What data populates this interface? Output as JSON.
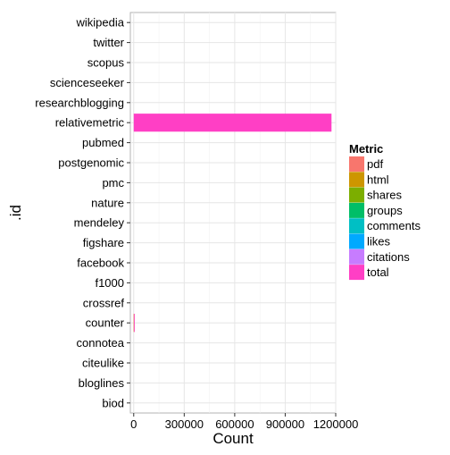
{
  "chart_data": {
    "type": "bar",
    "orientation": "horizontal",
    "stacked": true,
    "title": "",
    "xlabel": "Count",
    "ylabel": ".id",
    "xlim": [
      -20000,
      1200000
    ],
    "x_ticks": [
      0,
      300000,
      600000,
      900000,
      1200000
    ],
    "x_tick_labels": [
      "0",
      "300000",
      "600000",
      "900000",
      "1200000"
    ],
    "grid": true,
    "legend": {
      "title": "Metric",
      "position": "right"
    },
    "categories": [
      "wikipedia",
      "twitter",
      "scopus",
      "scienceseeker",
      "researchblogging",
      "relativemetric",
      "pubmed",
      "postgenomic",
      "pmc",
      "nature",
      "mendeley",
      "figshare",
      "facebook",
      "f1000",
      "crossref",
      "counter",
      "connotea",
      "citeulike",
      "bloglines",
      "biod"
    ],
    "series": [
      {
        "name": "pdf",
        "color": "#F8766D",
        "values": [
          0,
          0,
          0,
          0,
          0,
          0,
          0,
          0,
          0,
          0,
          0,
          0,
          0,
          0,
          0,
          250,
          0,
          0,
          0,
          0
        ]
      },
      {
        "name": "html",
        "color": "#CD9600",
        "values": [
          0,
          0,
          0,
          0,
          0,
          0,
          0,
          0,
          0,
          0,
          0,
          0,
          0,
          0,
          0,
          1000,
          0,
          0,
          0,
          0
        ]
      },
      {
        "name": "shares",
        "color": "#7CAE00",
        "values": [
          0,
          0,
          0,
          0,
          0,
          0,
          0,
          0,
          0,
          0,
          0,
          0,
          0,
          0,
          0,
          0,
          0,
          0,
          0,
          0
        ]
      },
      {
        "name": "groups",
        "color": "#00BE67",
        "values": [
          0,
          0,
          0,
          0,
          0,
          0,
          0,
          0,
          0,
          0,
          0,
          0,
          0,
          0,
          0,
          0,
          0,
          0,
          0,
          0
        ]
      },
      {
        "name": "comments",
        "color": "#00BFC4",
        "values": [
          0,
          0,
          0,
          0,
          0,
          0,
          0,
          0,
          0,
          0,
          0,
          0,
          0,
          0,
          0,
          0,
          0,
          0,
          0,
          0
        ]
      },
      {
        "name": "likes",
        "color": "#00A9FF",
        "values": [
          0,
          0,
          0,
          0,
          0,
          0,
          0,
          0,
          0,
          0,
          0,
          0,
          0,
          0,
          0,
          0,
          0,
          0,
          0,
          0
        ]
      },
      {
        "name": "citations",
        "color": "#C77CFF",
        "values": [
          0,
          0,
          0,
          0,
          0,
          0,
          0,
          0,
          0,
          0,
          0,
          0,
          0,
          0,
          0,
          0,
          0,
          0,
          0,
          0
        ]
      },
      {
        "name": "total",
        "color": "#FF3FC5",
        "values": [
          0,
          0,
          0,
          0,
          0,
          1175000,
          0,
          0,
          0,
          0,
          0,
          0,
          0,
          0,
          0,
          1250,
          0,
          0,
          0,
          0
        ]
      }
    ]
  }
}
